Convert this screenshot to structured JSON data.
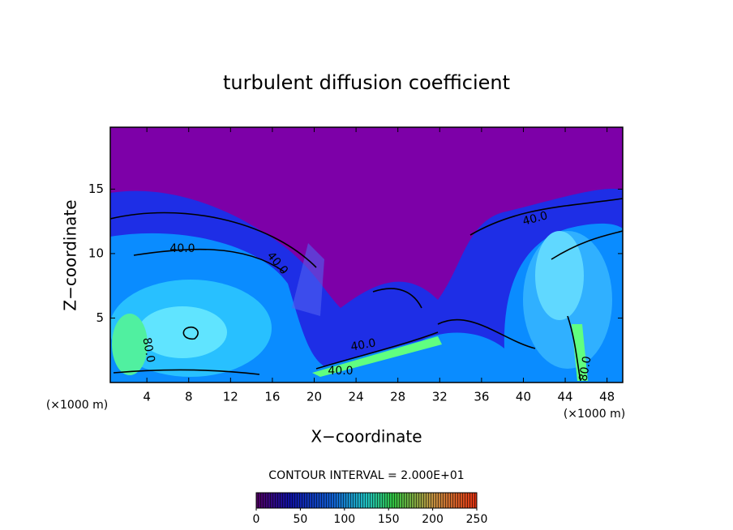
{
  "chart_data": {
    "type": "contour",
    "title": "turbulent diffusion coefficient",
    "xlabel": "X−coordinate",
    "ylabel": "Z−coordinate",
    "x_unit_label": "(×1000 m)",
    "xlim": [
      0.5,
      49.5
    ],
    "ylim": [
      0,
      19.8
    ],
    "xticks": [
      4,
      8,
      12,
      16,
      20,
      24,
      28,
      32,
      36,
      40,
      44,
      48
    ],
    "yticks": [
      5,
      10,
      15
    ],
    "contour_interval_label": "CONTOUR INTERVAL = 2.000E+01",
    "contour_labels": [
      "40.0",
      "40.0",
      "40.0",
      "40.0",
      "40.0",
      "80.0",
      "80.0"
    ],
    "colorbar": {
      "lim": [
        0,
        250
      ],
      "ticks": [
        0,
        50,
        100,
        150,
        200,
        250
      ]
    }
  }
}
